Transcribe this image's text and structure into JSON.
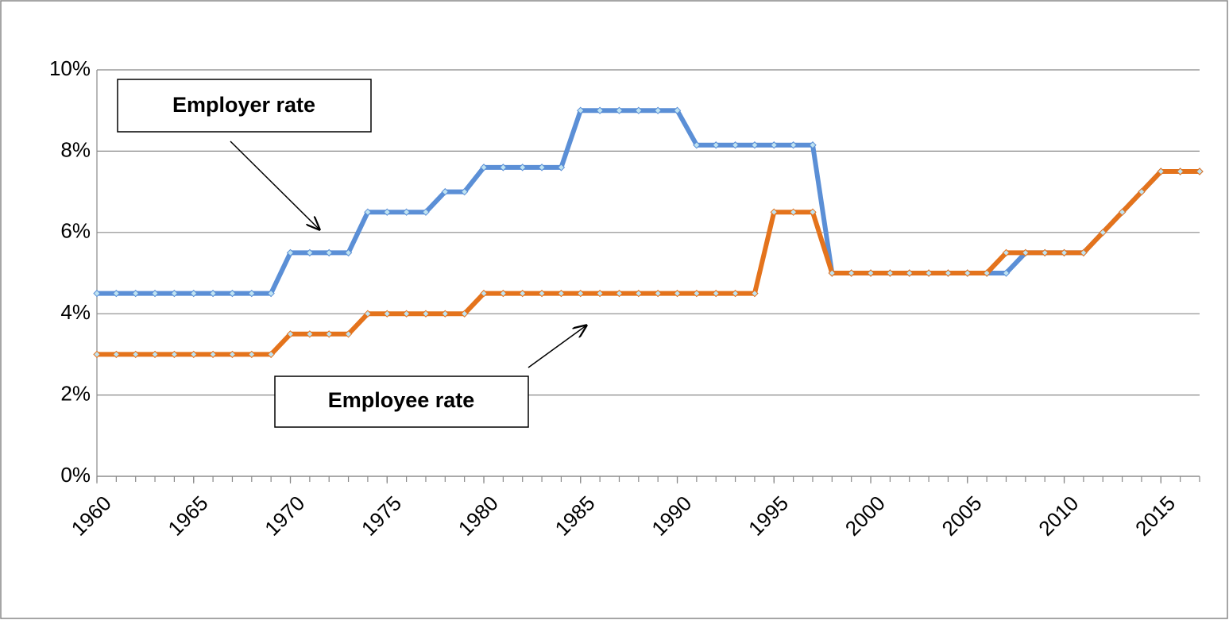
{
  "chart_data": {
    "type": "line",
    "x": [
      1960,
      1961,
      1962,
      1963,
      1964,
      1965,
      1966,
      1967,
      1968,
      1969,
      1970,
      1971,
      1972,
      1973,
      1974,
      1975,
      1976,
      1977,
      1978,
      1979,
      1980,
      1981,
      1982,
      1983,
      1984,
      1985,
      1986,
      1987,
      1988,
      1989,
      1990,
      1991,
      1992,
      1993,
      1994,
      1995,
      1996,
      1997,
      1998,
      1999,
      2000,
      2001,
      2002,
      2003,
      2004,
      2005,
      2006,
      2007,
      2008,
      2009,
      2010,
      2011,
      2012,
      2013,
      2014,
      2015,
      2016,
      2017
    ],
    "series": [
      {
        "name": "Employer rate",
        "color": "#5b8fd6",
        "values": [
          4.5,
          4.5,
          4.5,
          4.5,
          4.5,
          4.5,
          4.5,
          4.5,
          4.5,
          4.5,
          5.5,
          5.5,
          5.5,
          5.5,
          6.5,
          6.5,
          6.5,
          6.5,
          7,
          7,
          7.6,
          7.6,
          7.6,
          7.6,
          7.6,
          9,
          9,
          9,
          9,
          9,
          9,
          8.15,
          8.15,
          8.15,
          8.15,
          8.15,
          8.15,
          8.15,
          5,
          5,
          5,
          5,
          5,
          5,
          5,
          5,
          5,
          5,
          5.5,
          5.5,
          5.5,
          5.5,
          6,
          6.5,
          7,
          7.5,
          7.5,
          7.5
        ]
      },
      {
        "name": "Employee rate",
        "color": "#e4731c",
        "values": [
          3,
          3,
          3,
          3,
          3,
          3,
          3,
          3,
          3,
          3,
          3.5,
          3.5,
          3.5,
          3.5,
          4,
          4,
          4,
          4,
          4,
          4,
          4.5,
          4.5,
          4.5,
          4.5,
          4.5,
          4.5,
          4.5,
          4.5,
          4.5,
          4.5,
          4.5,
          4.5,
          4.5,
          4.5,
          4.5,
          6.5,
          6.5,
          6.5,
          5,
          5,
          5,
          5,
          5,
          5,
          5,
          5,
          5,
          5.5,
          5.5,
          5.5,
          5.5,
          5.5,
          6,
          6.5,
          7,
          7.5,
          7.5,
          7.5
        ]
      }
    ],
    "xlim": [
      1960,
      2017
    ],
    "xticks": [
      1960,
      1965,
      1970,
      1975,
      1980,
      1985,
      1990,
      1995,
      2000,
      2005,
      2010,
      2015
    ],
    "ylim": [
      0,
      10
    ],
    "yticks": [
      {
        "value": 0,
        "label": "0%"
      },
      {
        "value": 2,
        "label": "2%"
      },
      {
        "value": 4,
        "label": "4%"
      },
      {
        "value": 6,
        "label": "6%"
      },
      {
        "value": 8,
        "label": "8%"
      },
      {
        "value": 10,
        "label": "10%"
      }
    ],
    "grid": true
  }
}
